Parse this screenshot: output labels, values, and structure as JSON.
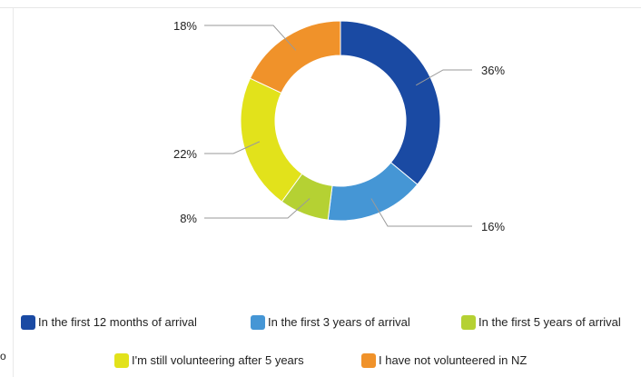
{
  "chart_data": {
    "type": "pie",
    "variant": "donut",
    "title": "",
    "slices": [
      {
        "label": "In the first 12 months of arrival",
        "value": 36,
        "display": "36%",
        "color": "#1a4aa3"
      },
      {
        "label": "In the first 3 years of arrival",
        "value": 16,
        "display": "16%",
        "color": "#4596d5"
      },
      {
        "label": "In the first 5 years of arrival",
        "value": 8,
        "display": "8%",
        "color": "#b5d133"
      },
      {
        "label": "I'm still volunteering after 5 years",
        "value": 22,
        "display": "22%",
        "color": "#e2e21b"
      },
      {
        "label": "I have not volunteered in NZ",
        "value": 18,
        "display": "18%",
        "color": "#f0922a"
      }
    ],
    "legend_position": "bottom"
  },
  "edge_fragment": "o"
}
